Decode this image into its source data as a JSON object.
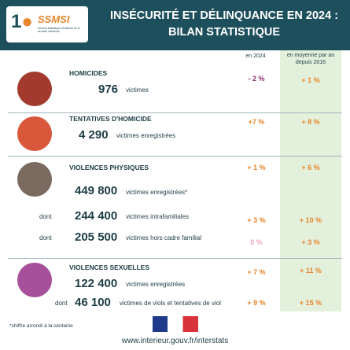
{
  "logo": {
    "name": "SSMSI",
    "subtitle": "Service statistique ministériel de la sécurité intérieure"
  },
  "header": {
    "title_lines": [
      "INSÉCURITÉ ET DÉLINQUANCE EN 2024 :",
      "BILAN STATISTIQUE"
    ]
  },
  "columns": {
    "year": "en 2024",
    "average": "en moyenne par an depuis 2016"
  },
  "sections": [
    {
      "label": "HOMICIDES",
      "rows": [
        {
          "number": "976",
          "unit": "victimes",
          "change": "- 2 %",
          "average": "+ 1 %"
        }
      ]
    },
    {
      "label": "TENTATIVES D'HOMICIDE",
      "rows": [
        {
          "number": "4 290",
          "unit": "victimes enregistrées",
          "change": "+7 %",
          "average": "+ 8 %"
        }
      ]
    },
    {
      "label": "VIOLENCES PHYSIQUES",
      "rows": [
        {
          "number": "449 800",
          "unit": "victimes enregistrées*",
          "change": "+ 1 %",
          "average": "+ 6 %"
        },
        {
          "prefix": "dont",
          "number": "244 400",
          "unit": "victimes intrafamiliales",
          "change": "+ 3 %",
          "average": "+ 10 %"
        },
        {
          "prefix": "dont",
          "number": "205 500",
          "unit": "victimes hors cadre familial",
          "change": "0 %",
          "average": "+ 3 %"
        }
      ]
    },
    {
      "label": "VIOLENCES SEXUELLES",
      "rows": [
        {
          "number": "122 400",
          "unit": "victimes enregistrées",
          "change": "+ 7 %",
          "average": "+ 11 %"
        },
        {
          "prefix": "dont",
          "number": "46 100",
          "unit": "victimes de viols et tentatives de viol",
          "change": "+ 9 %",
          "average": "+ 15 %"
        }
      ]
    }
  ],
  "footnote": "*chiffre arrondi à la centaine",
  "url": "www.interieur.gouv.fr/interstats"
}
